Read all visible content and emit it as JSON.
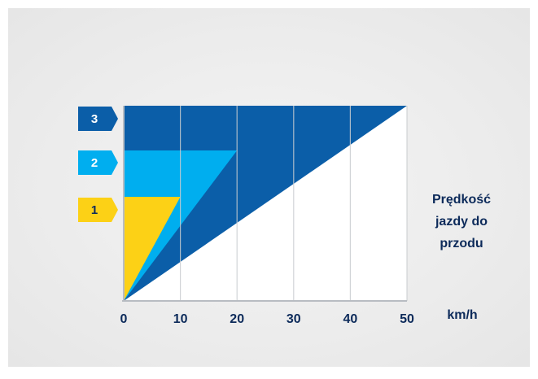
{
  "chart_data": {
    "type": "area",
    "xlabel": "km/h",
    "ylabel": "Prędkość jazdy do przodu",
    "ylabel_lines": [
      "Prędkość",
      "jazdy do",
      "przodu"
    ],
    "x_ticks": [
      0,
      10,
      20,
      30,
      40,
      50
    ],
    "xlim": [
      0,
      50
    ],
    "grid": true,
    "series": [
      {
        "name": "3",
        "max_speed_kmh": 50,
        "color": "#0b5ea8"
      },
      {
        "name": "2",
        "max_speed_kmh": 20,
        "color": "#00aeef"
      },
      {
        "name": "1",
        "max_speed_kmh": 10,
        "color": "#fcd116"
      }
    ]
  }
}
